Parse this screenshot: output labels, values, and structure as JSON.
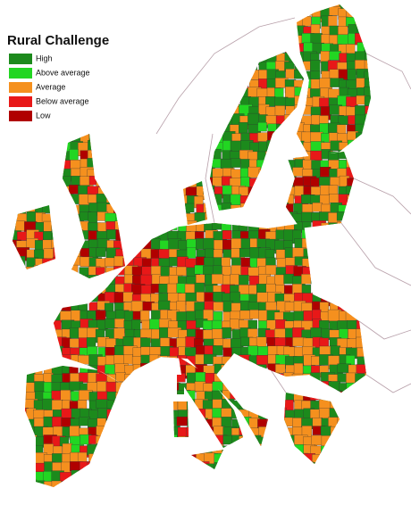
{
  "title": "Rural Challenge",
  "legend": [
    {
      "label": "High",
      "color": "#1c8a1c"
    },
    {
      "label": "Above average",
      "color": "#22d622"
    },
    {
      "label": "Average",
      "color": "#f5901e"
    },
    {
      "label": "Below average",
      "color": "#e81818"
    },
    {
      "label": "Low",
      "color": "#b00000"
    }
  ]
}
